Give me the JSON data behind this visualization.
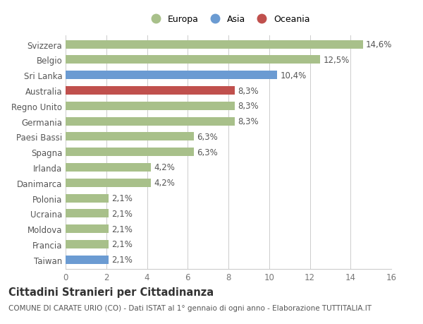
{
  "categories": [
    "Svizzera",
    "Belgio",
    "Sri Lanka",
    "Australia",
    "Regno Unito",
    "Germania",
    "Paesi Bassi",
    "Spagna",
    "Irlanda",
    "Danimarca",
    "Polonia",
    "Ucraina",
    "Moldova",
    "Francia",
    "Taiwan"
  ],
  "values": [
    14.6,
    12.5,
    10.4,
    8.3,
    8.3,
    8.3,
    6.3,
    6.3,
    4.2,
    4.2,
    2.1,
    2.1,
    2.1,
    2.1,
    2.1
  ],
  "labels": [
    "14,6%",
    "12,5%",
    "10,4%",
    "8,3%",
    "8,3%",
    "8,3%",
    "6,3%",
    "6,3%",
    "4,2%",
    "4,2%",
    "2,1%",
    "2,1%",
    "2,1%",
    "2,1%",
    "2,1%"
  ],
  "colors": [
    "#a8c08a",
    "#a8c08a",
    "#6b9bd2",
    "#c0504d",
    "#a8c08a",
    "#a8c08a",
    "#a8c08a",
    "#a8c08a",
    "#a8c08a",
    "#a8c08a",
    "#a8c08a",
    "#a8c08a",
    "#a8c08a",
    "#a8c08a",
    "#6b9bd2"
  ],
  "legend": [
    {
      "label": "Europa",
      "color": "#a8c08a"
    },
    {
      "label": "Asia",
      "color": "#6b9bd2"
    },
    {
      "label": "Oceania",
      "color": "#c0504d"
    }
  ],
  "xlim": [
    0,
    16
  ],
  "xticks": [
    0,
    2,
    4,
    6,
    8,
    10,
    12,
    14,
    16
  ],
  "title": "Cittadini Stranieri per Cittadinanza",
  "subtitle": "COMUNE DI CARATE URIO (CO) - Dati ISTAT al 1° gennaio di ogni anno - Elaborazione TUTTITALIA.IT",
  "bg_color": "#ffffff",
  "grid_color": "#cccccc",
  "bar_height": 0.55,
  "label_fontsize": 8.5,
  "tick_fontsize": 8.5,
  "title_fontsize": 10.5,
  "subtitle_fontsize": 7.5
}
